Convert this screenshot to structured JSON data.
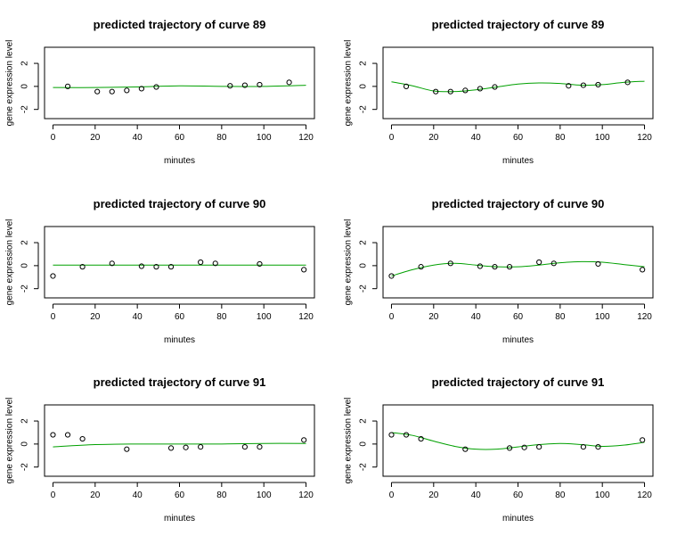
{
  "chart_data": [
    {
      "type": "scatter",
      "title": "predicted trajectory of curve 89",
      "xlabel": "minutes",
      "ylabel": "gene expression level",
      "xlim": [
        -4,
        124
      ],
      "ylim": [
        -2.8,
        3.4
      ],
      "xticks": [
        "0",
        "20",
        "40",
        "60",
        "80",
        "100",
        "120"
      ],
      "yticks": [
        "-2",
        "0",
        "2"
      ],
      "grid": false,
      "points": {
        "x": [
          7,
          21,
          28,
          35,
          42,
          49,
          84,
          91,
          98,
          112
        ],
        "y": [
          0.0,
          -0.45,
          -0.45,
          -0.35,
          -0.2,
          -0.05,
          0.05,
          0.1,
          0.15,
          0.35
        ]
      },
      "line": {
        "color": "#00a000",
        "x": [
          0,
          20,
          40,
          60,
          80,
          100,
          120
        ],
        "y": [
          -0.1,
          -0.1,
          -0.05,
          0.05,
          0.0,
          0.0,
          0.1
        ]
      }
    },
    {
      "type": "scatter",
      "title": "predicted trajectory of curve 89",
      "xlabel": "minutes",
      "ylabel": "gene expression level",
      "xlim": [
        -4,
        124
      ],
      "ylim": [
        -2.8,
        3.4
      ],
      "xticks": [
        "0",
        "20",
        "40",
        "60",
        "80",
        "100",
        "120"
      ],
      "yticks": [
        "-2",
        "0",
        "2"
      ],
      "grid": false,
      "points": {
        "x": [
          7,
          21,
          28,
          35,
          42,
          49,
          84,
          91,
          98,
          112
        ],
        "y": [
          0.0,
          -0.45,
          -0.45,
          -0.35,
          -0.2,
          -0.05,
          0.05,
          0.1,
          0.15,
          0.35
        ]
      },
      "line": {
        "color": "#00a000",
        "x": [
          0,
          10,
          20,
          30,
          40,
          50,
          60,
          70,
          80,
          90,
          100,
          110,
          120
        ],
        "y": [
          0.4,
          0.05,
          -0.4,
          -0.45,
          -0.3,
          -0.05,
          0.2,
          0.3,
          0.25,
          0.1,
          0.15,
          0.35,
          0.45
        ]
      }
    },
    {
      "type": "scatter",
      "title": "predicted trajectory of curve 90",
      "xlabel": "minutes",
      "ylabel": "gene expression level",
      "xlim": [
        -4,
        124
      ],
      "ylim": [
        -2.8,
        3.4
      ],
      "xticks": [
        "0",
        "20",
        "40",
        "60",
        "80",
        "100",
        "120"
      ],
      "yticks": [
        "-2",
        "0",
        "2"
      ],
      "grid": false,
      "points": {
        "x": [
          0,
          14,
          28,
          42,
          49,
          56,
          70,
          77,
          98,
          119
        ],
        "y": [
          -0.9,
          -0.1,
          0.2,
          -0.05,
          -0.1,
          -0.1,
          0.3,
          0.2,
          0.15,
          -0.35
        ]
      },
      "line": {
        "color": "#00a000",
        "x": [
          0,
          20,
          40,
          60,
          80,
          100,
          120
        ],
        "y": [
          0.05,
          0.05,
          0.05,
          0.05,
          0.05,
          0.05,
          0.05
        ]
      }
    },
    {
      "type": "scatter",
      "title": "predicted trajectory of curve 90",
      "xlabel": "minutes",
      "ylabel": "gene expression level",
      "xlim": [
        -4,
        124
      ],
      "ylim": [
        -2.8,
        3.4
      ],
      "xticks": [
        "0",
        "20",
        "40",
        "60",
        "80",
        "100",
        "120"
      ],
      "yticks": [
        "-2",
        "0",
        "2"
      ],
      "grid": false,
      "points": {
        "x": [
          0,
          14,
          28,
          42,
          49,
          56,
          70,
          77,
          98,
          119
        ],
        "y": [
          -0.9,
          -0.1,
          0.2,
          -0.05,
          -0.1,
          -0.1,
          0.3,
          0.2,
          0.15,
          -0.35
        ]
      },
      "line": {
        "color": "#00a000",
        "x": [
          0,
          10,
          20,
          30,
          40,
          50,
          60,
          70,
          80,
          90,
          100,
          110,
          120
        ],
        "y": [
          -0.9,
          -0.35,
          0.05,
          0.2,
          0.05,
          -0.1,
          -0.1,
          0.05,
          0.25,
          0.35,
          0.3,
          0.1,
          -0.1
        ]
      }
    },
    {
      "type": "scatter",
      "title": "predicted trajectory of curve 91",
      "xlabel": "minutes",
      "ylabel": "gene expression level",
      "xlim": [
        -4,
        124
      ],
      "ylim": [
        -2.8,
        3.4
      ],
      "xticks": [
        "0",
        "20",
        "40",
        "60",
        "80",
        "100",
        "120"
      ],
      "yticks": [
        "-2",
        "0",
        "2"
      ],
      "grid": false,
      "points": {
        "x": [
          0,
          7,
          14,
          35,
          56,
          63,
          70,
          91,
          98,
          119
        ],
        "y": [
          0.8,
          0.8,
          0.45,
          -0.45,
          -0.35,
          -0.3,
          -0.25,
          -0.25,
          -0.25,
          0.35
        ]
      },
      "line": {
        "color": "#00a000",
        "x": [
          0,
          20,
          40,
          60,
          80,
          100,
          120
        ],
        "y": [
          -0.25,
          -0.05,
          0.0,
          0.0,
          0.0,
          0.05,
          0.05
        ]
      }
    },
    {
      "type": "scatter",
      "title": "predicted trajectory of curve 91",
      "xlabel": "minutes",
      "ylabel": "gene expression level",
      "xlim": [
        -4,
        124
      ],
      "ylim": [
        -2.8,
        3.4
      ],
      "xticks": [
        "0",
        "20",
        "40",
        "60",
        "80",
        "100",
        "120"
      ],
      "yticks": [
        "-2",
        "0",
        "2"
      ],
      "grid": false,
      "points": {
        "x": [
          0,
          7,
          14,
          35,
          56,
          63,
          70,
          91,
          98,
          119
        ],
        "y": [
          0.8,
          0.8,
          0.45,
          -0.45,
          -0.35,
          -0.3,
          -0.25,
          -0.25,
          -0.25,
          0.35
        ]
      },
      "line": {
        "color": "#00a000",
        "x": [
          0,
          10,
          20,
          30,
          40,
          50,
          60,
          70,
          80,
          90,
          100,
          110,
          120
        ],
        "y": [
          1.0,
          0.75,
          0.25,
          -0.2,
          -0.45,
          -0.45,
          -0.25,
          -0.05,
          0.05,
          -0.05,
          -0.2,
          -0.1,
          0.15
        ]
      }
    }
  ]
}
